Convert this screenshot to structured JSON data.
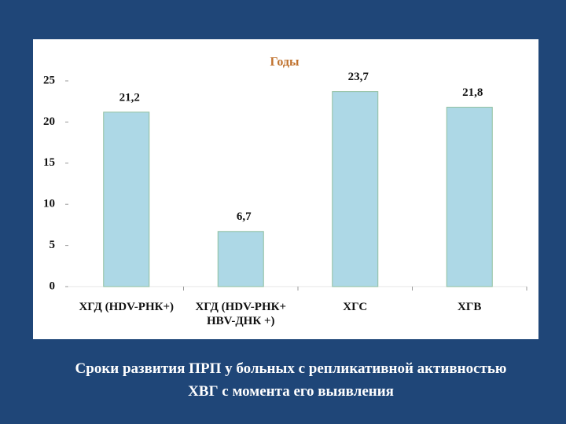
{
  "chart_data": {
    "type": "bar",
    "title": "Годы",
    "categories": [
      "ХГД (HDV-РНК+)",
      "ХГД (HDV-РНК+ HBV-ДНК +)",
      "ХГС",
      "ХГВ"
    ],
    "values": [
      21.2,
      6.7,
      23.7,
      21.8
    ],
    "value_labels": [
      "21,2",
      "6,7",
      "23,7",
      "21,8"
    ],
    "color": "#add8e6",
    "ylim": [
      0,
      25
    ],
    "yticks": [
      0,
      5,
      10,
      15,
      20,
      25
    ],
    "caption": "Сроки развития ПРП у больных с репликативной активностью ХВГ с момента его выявления"
  }
}
